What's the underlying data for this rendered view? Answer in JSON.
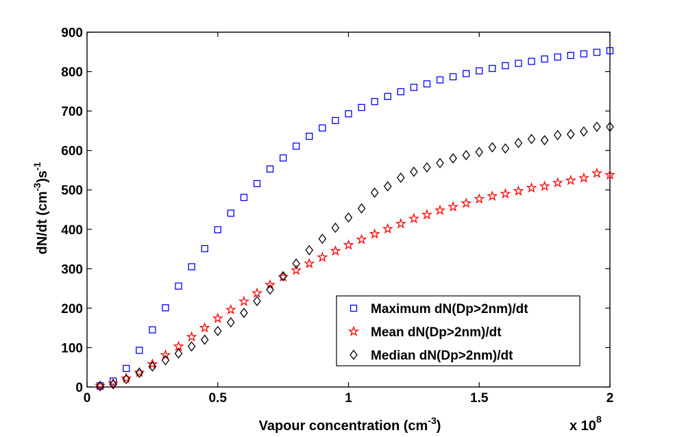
{
  "chart_data": {
    "type": "scatter",
    "xlabel": "Vapour concentration (cm",
    "xlabel_sup": "-3",
    "xlabel_end": ")",
    "ylabel": "dN/dt (cm",
    "ylabel_sup1": "-3",
    "ylabel_mid": ")s",
    "ylabel_sup2": "-1",
    "x_multiplier_text": "x 10",
    "x_multiplier_exp": "8",
    "xlim": [
      0,
      2
    ],
    "ylim": [
      0,
      900
    ],
    "x_ticks": [
      0,
      0.5,
      1,
      1.5,
      2
    ],
    "x_tick_labels": [
      "0",
      "0.5",
      "1",
      "1.5",
      "2"
    ],
    "y_ticks": [
      0,
      100,
      200,
      300,
      400,
      500,
      600,
      700,
      800,
      900
    ],
    "y_tick_labels": [
      "0",
      "100",
      "200",
      "300",
      "400",
      "500",
      "600",
      "700",
      "800",
      "900"
    ],
    "grid": false,
    "legend_position": "bottom-right",
    "x": [
      0.05,
      0.1,
      0.15,
      0.2,
      0.25,
      0.3,
      0.35,
      0.4,
      0.45,
      0.5,
      0.55,
      0.6,
      0.65,
      0.7,
      0.75,
      0.8,
      0.85,
      0.9,
      0.95,
      1.0,
      1.05,
      1.1,
      1.15,
      1.2,
      1.25,
      1.3,
      1.35,
      1.4,
      1.45,
      1.5,
      1.55,
      1.6,
      1.65,
      1.7,
      1.75,
      1.8,
      1.85,
      1.9,
      1.95,
      2.0
    ],
    "series": [
      {
        "name": "Maximum dN(Dp>2nm)/dt",
        "marker": "square",
        "color": "#0000ff",
        "values": [
          3,
          15,
          47,
          93,
          145,
          201,
          256,
          305,
          351,
          399,
          441,
          481,
          516,
          553,
          581,
          611,
          636,
          657,
          676,
          693,
          709,
          724,
          737,
          749,
          760,
          769,
          779,
          787,
          795,
          802,
          808,
          815,
          821,
          826,
          832,
          837,
          841,
          845,
          849,
          853
        ]
      },
      {
        "name": "Mean dN(Dp>2nm)/dt",
        "marker": "star",
        "color": "#ff0000",
        "values": [
          3,
          9,
          22,
          37,
          58,
          81,
          103,
          127,
          150,
          174,
          196,
          217,
          238,
          259,
          279,
          296,
          313,
          329,
          345,
          360,
          374,
          388,
          401,
          414,
          427,
          437,
          448,
          457,
          466,
          477,
          484,
          490,
          497,
          505,
          509,
          518,
          524,
          530,
          542,
          538
        ]
      },
      {
        "name": "Median dN(Dp>2nm)/dt",
        "marker": "diamond",
        "color": "#000000",
        "values": [
          2,
          7,
          20,
          36,
          52,
          68,
          85,
          103,
          120,
          142,
          164,
          188,
          218,
          247,
          281,
          313,
          347,
          376,
          404,
          430,
          453,
          493,
          509,
          531,
          546,
          557,
          568,
          580,
          588,
          596,
          608,
          605,
          619,
          629,
          626,
          639,
          641,
          648,
          660,
          660
        ]
      }
    ]
  }
}
